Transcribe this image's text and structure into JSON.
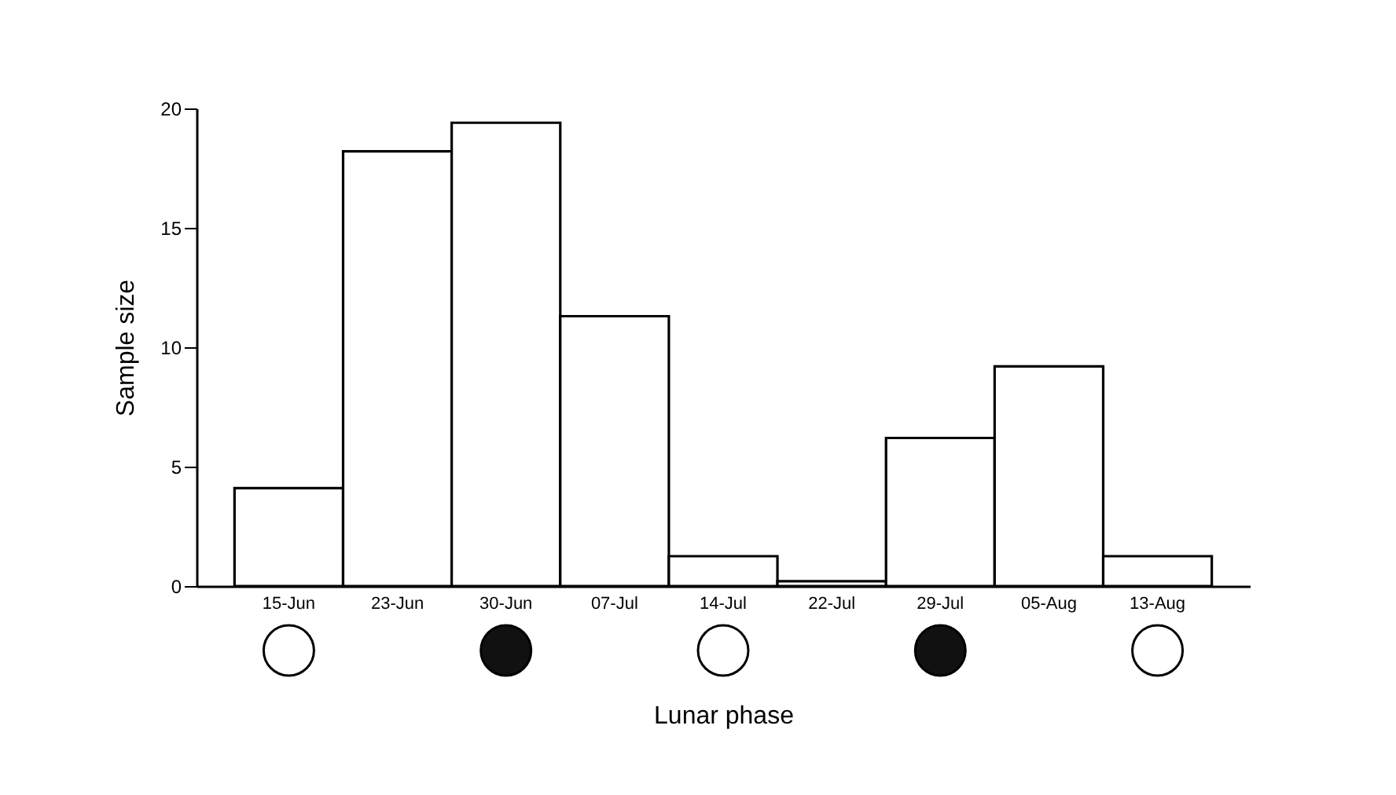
{
  "chart_data": {
    "type": "bar",
    "xlabel": "Lunar phase",
    "ylabel": "Sample size",
    "categories": [
      "15-Jun",
      "23-Jun",
      "30-Jun",
      "07-Jul",
      "14-Jul",
      "22-Jul",
      "29-Jul",
      "05-Aug",
      "13-Aug"
    ],
    "values": [
      4.1,
      18.2,
      19.4,
      11.3,
      1.25,
      0.2,
      6.2,
      9.2,
      1.25
    ],
    "color": "#ffffff",
    "ylim": [
      0,
      20
    ],
    "yticks": [
      0,
      5,
      10,
      15,
      20
    ]
  }
}
